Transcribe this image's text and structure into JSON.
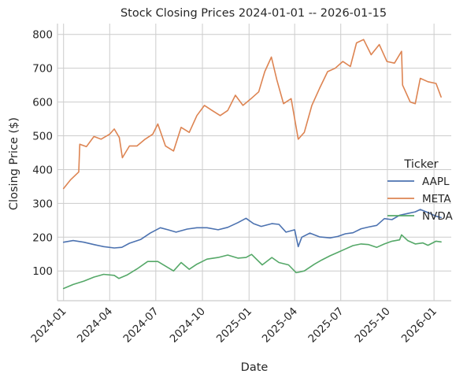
{
  "chart_data": {
    "type": "line",
    "title": "Stock Closing Prices 2024-01-01 -- 2026-01-15",
    "xlabel": "Date",
    "ylabel": "Closing Price ($)",
    "xlim": [
      "2023-12-20",
      "2026-02-04"
    ],
    "ylim": [
      12,
      832
    ],
    "x_ticks": [
      "2024-01",
      "2024-04",
      "2024-07",
      "2024-10",
      "2025-01",
      "2025-04",
      "2025-07",
      "2025-10",
      "2026-01"
    ],
    "y_ticks": [
      100,
      200,
      300,
      400,
      500,
      600,
      700,
      800
    ],
    "grid": true,
    "legend": {
      "title": "Ticker",
      "placement": "right"
    },
    "series": [
      {
        "name": "AAPL",
        "color": "#4c72b0",
        "points": [
          [
            "2024-01-01",
            185
          ],
          [
            "2024-01-20",
            190
          ],
          [
            "2024-02-10",
            185
          ],
          [
            "2024-03-01",
            178
          ],
          [
            "2024-03-20",
            172
          ],
          [
            "2024-04-10",
            168
          ],
          [
            "2024-04-25",
            170
          ],
          [
            "2024-05-10",
            182
          ],
          [
            "2024-06-01",
            193
          ],
          [
            "2024-06-20",
            212
          ],
          [
            "2024-07-10",
            228
          ],
          [
            "2024-07-25",
            222
          ],
          [
            "2024-08-10",
            215
          ],
          [
            "2024-09-01",
            224
          ],
          [
            "2024-09-20",
            228
          ],
          [
            "2024-10-10",
            228
          ],
          [
            "2024-11-01",
            222
          ],
          [
            "2024-11-20",
            229
          ],
          [
            "2024-12-10",
            243
          ],
          [
            "2024-12-26",
            256
          ],
          [
            "2025-01-10",
            240
          ],
          [
            "2025-01-25",
            232
          ],
          [
            "2025-02-15",
            240
          ],
          [
            "2025-03-01",
            238
          ],
          [
            "2025-03-15",
            215
          ],
          [
            "2025-04-01",
            222
          ],
          [
            "2025-04-08",
            172
          ],
          [
            "2025-04-15",
            200
          ],
          [
            "2025-05-01",
            212
          ],
          [
            "2025-05-20",
            201
          ],
          [
            "2025-06-10",
            198
          ],
          [
            "2025-06-25",
            202
          ],
          [
            "2025-07-10",
            210
          ],
          [
            "2025-07-25",
            213
          ],
          [
            "2025-08-10",
            225
          ],
          [
            "2025-08-25",
            230
          ],
          [
            "2025-09-10",
            235
          ],
          [
            "2025-09-25",
            255
          ],
          [
            "2025-10-10",
            252
          ],
          [
            "2025-10-25",
            265
          ],
          [
            "2025-11-10",
            270
          ],
          [
            "2025-11-25",
            275
          ],
          [
            "2025-12-05",
            282
          ],
          [
            "2025-12-20",
            273
          ],
          [
            "2026-01-05",
            262
          ],
          [
            "2026-01-15",
            258
          ]
        ]
      },
      {
        "name": "META",
        "color": "#dd8452",
        "points": [
          [
            "2024-01-01",
            344
          ],
          [
            "2024-01-15",
            370
          ],
          [
            "2024-01-31",
            393
          ],
          [
            "2024-02-02",
            475
          ],
          [
            "2024-02-15",
            468
          ],
          [
            "2024-03-01",
            498
          ],
          [
            "2024-03-15",
            490
          ],
          [
            "2024-04-01",
            505
          ],
          [
            "2024-04-10",
            520
          ],
          [
            "2024-04-20",
            495
          ],
          [
            "2024-04-26",
            435
          ],
          [
            "2024-05-10",
            470
          ],
          [
            "2024-05-25",
            470
          ],
          [
            "2024-06-10",
            490
          ],
          [
            "2024-06-25",
            505
          ],
          [
            "2024-07-05",
            535
          ],
          [
            "2024-07-20",
            470
          ],
          [
            "2024-08-05",
            455
          ],
          [
            "2024-08-20",
            525
          ],
          [
            "2024-09-05",
            510
          ],
          [
            "2024-09-20",
            560
          ],
          [
            "2024-10-05",
            590
          ],
          [
            "2024-10-20",
            575
          ],
          [
            "2024-11-05",
            560
          ],
          [
            "2024-11-20",
            575
          ],
          [
            "2024-12-05",
            620
          ],
          [
            "2024-12-20",
            590
          ],
          [
            "2025-01-05",
            610
          ],
          [
            "2025-01-20",
            630
          ],
          [
            "2025-02-01",
            690
          ],
          [
            "2025-02-14",
            733
          ],
          [
            "2025-02-25",
            665
          ],
          [
            "2025-03-10",
            595
          ],
          [
            "2025-03-25",
            610
          ],
          [
            "2025-04-08",
            490
          ],
          [
            "2025-04-20",
            510
          ],
          [
            "2025-05-05",
            590
          ],
          [
            "2025-05-20",
            640
          ],
          [
            "2025-06-05",
            690
          ],
          [
            "2025-06-20",
            700
          ],
          [
            "2025-07-05",
            720
          ],
          [
            "2025-07-20",
            705
          ],
          [
            "2025-08-01",
            775
          ],
          [
            "2025-08-15",
            785
          ],
          [
            "2025-08-30",
            740
          ],
          [
            "2025-09-15",
            770
          ],
          [
            "2025-09-30",
            720
          ],
          [
            "2025-10-15",
            715
          ],
          [
            "2025-10-29",
            750
          ],
          [
            "2025-10-31",
            650
          ],
          [
            "2025-11-15",
            600
          ],
          [
            "2025-11-25",
            595
          ],
          [
            "2025-12-05",
            670
          ],
          [
            "2025-12-20",
            660
          ],
          [
            "2026-01-05",
            655
          ],
          [
            "2026-01-15",
            615
          ]
        ]
      },
      {
        "name": "NVDA",
        "color": "#55a868",
        "points": [
          [
            "2024-01-01",
            48
          ],
          [
            "2024-01-20",
            60
          ],
          [
            "2024-02-10",
            70
          ],
          [
            "2024-03-01",
            82
          ],
          [
            "2024-03-20",
            90
          ],
          [
            "2024-04-10",
            87
          ],
          [
            "2024-04-19",
            78
          ],
          [
            "2024-05-05",
            88
          ],
          [
            "2024-05-25",
            106
          ],
          [
            "2024-06-15",
            128
          ],
          [
            "2024-07-05",
            128
          ],
          [
            "2024-07-25",
            110
          ],
          [
            "2024-08-05",
            100
          ],
          [
            "2024-08-20",
            125
          ],
          [
            "2024-09-05",
            105
          ],
          [
            "2024-09-20",
            120
          ],
          [
            "2024-10-10",
            135
          ],
          [
            "2024-11-01",
            140
          ],
          [
            "2024-11-20",
            147
          ],
          [
            "2024-12-10",
            138
          ],
          [
            "2024-12-26",
            140
          ],
          [
            "2025-01-06",
            149
          ],
          [
            "2025-01-27",
            118
          ],
          [
            "2025-02-15",
            140
          ],
          [
            "2025-03-01",
            125
          ],
          [
            "2025-03-20",
            118
          ],
          [
            "2025-04-04",
            95
          ],
          [
            "2025-04-20",
            100
          ],
          [
            "2025-05-10",
            120
          ],
          [
            "2025-05-25",
            133
          ],
          [
            "2025-06-10",
            145
          ],
          [
            "2025-06-25",
            155
          ],
          [
            "2025-07-10",
            165
          ],
          [
            "2025-07-25",
            175
          ],
          [
            "2025-08-10",
            180
          ],
          [
            "2025-08-25",
            178
          ],
          [
            "2025-09-10",
            170
          ],
          [
            "2025-09-25",
            180
          ],
          [
            "2025-10-10",
            188
          ],
          [
            "2025-10-25",
            192
          ],
          [
            "2025-10-29",
            207
          ],
          [
            "2025-11-10",
            190
          ],
          [
            "2025-11-25",
            180
          ],
          [
            "2025-12-10",
            183
          ],
          [
            "2025-12-20",
            176
          ],
          [
            "2026-01-05",
            188
          ],
          [
            "2026-01-15",
            186
          ]
        ]
      }
    ]
  }
}
